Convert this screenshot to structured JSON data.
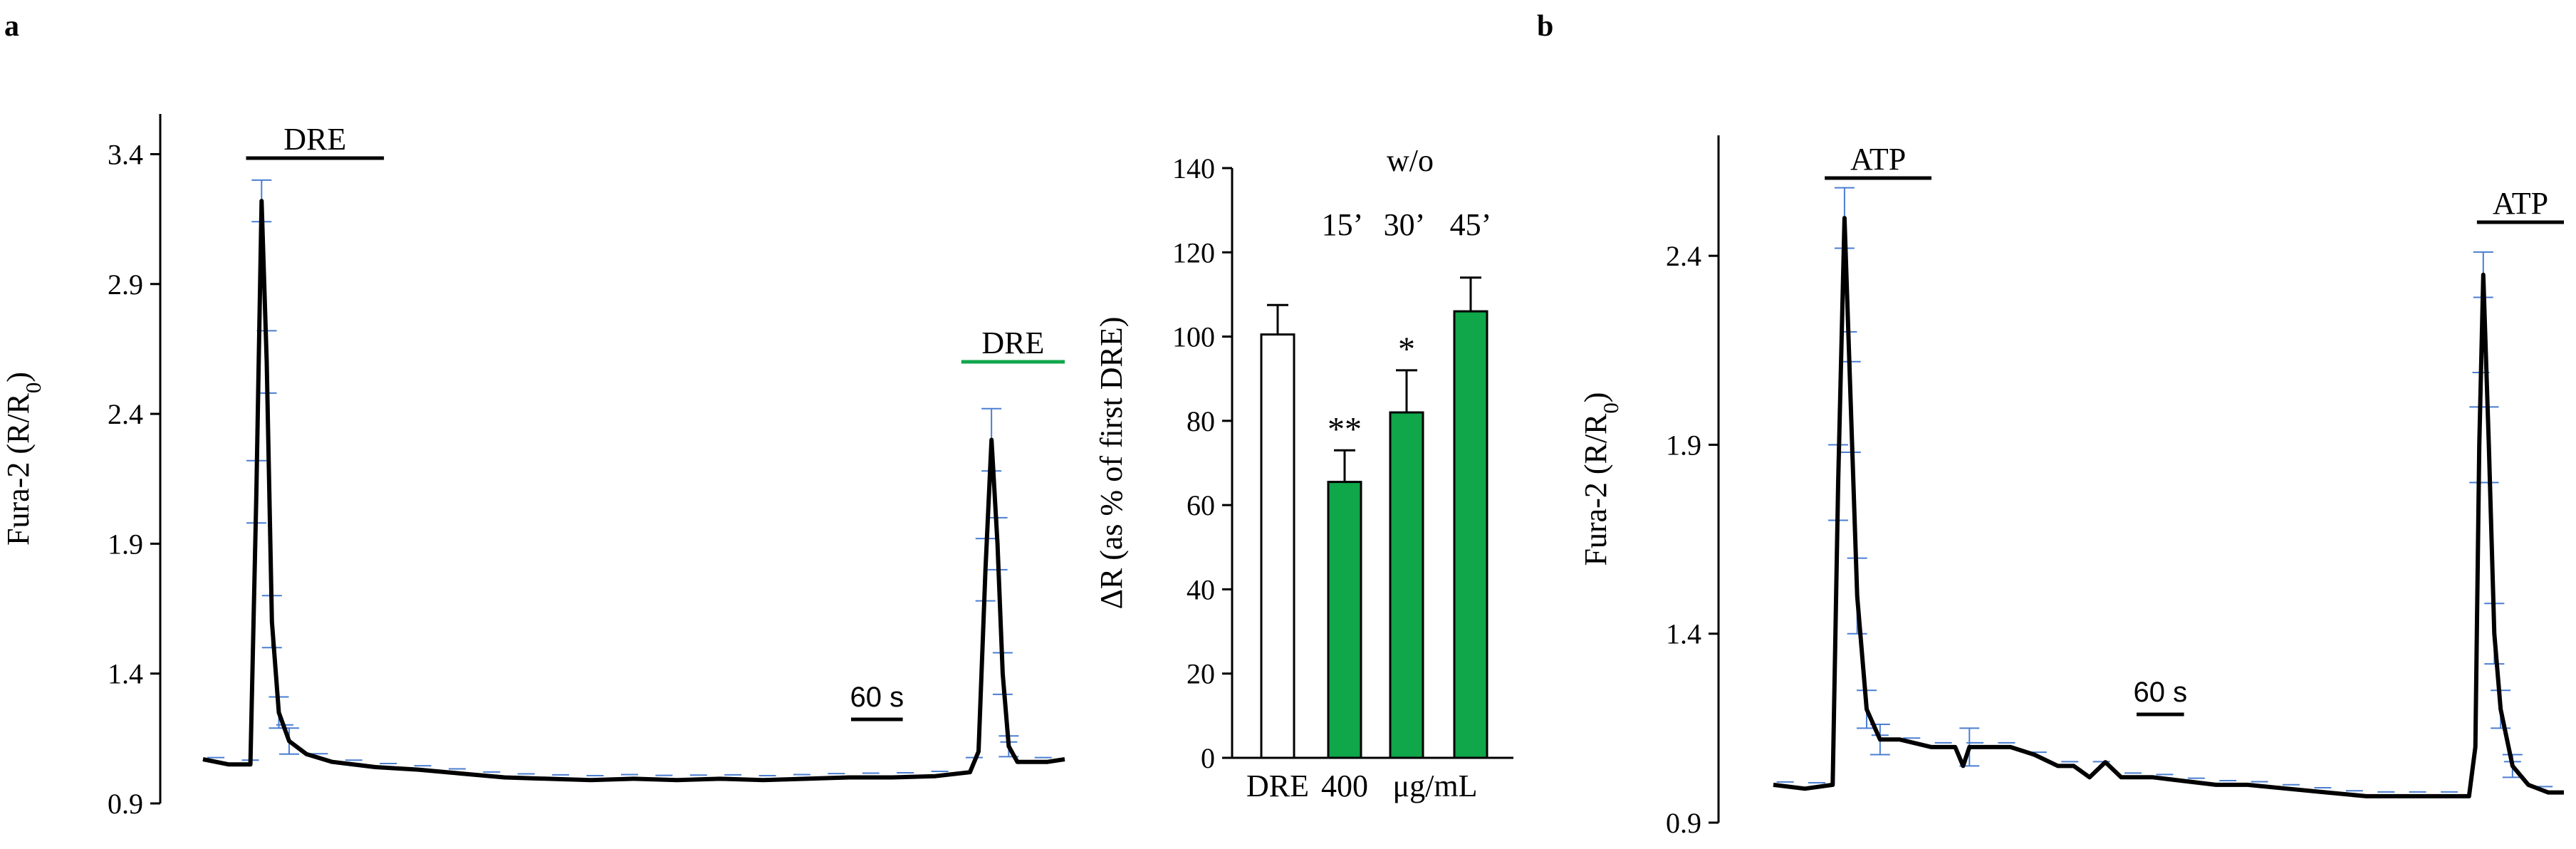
{
  "panels": {
    "a": {
      "label": "a"
    },
    "b": {
      "label": "b"
    }
  },
  "colors": {
    "trace": "#000000",
    "error_bar": "#4a7ed1",
    "green": "#10a64a",
    "axis": "#000000"
  },
  "chart_data": [
    {
      "id": "a-trace",
      "type": "line",
      "ylabel": "Fura-2 (R/R0)",
      "ylim": [
        0.9,
        3.5
      ],
      "yticks": [
        0.9,
        1.4,
        1.9,
        2.4,
        2.9,
        3.4
      ],
      "ytick_labels": [
        "0.9",
        "1.4",
        "1.9",
        "2.4",
        "2.9",
        "3.4"
      ],
      "xlim": [
        0,
        1000
      ],
      "x_units": "s",
      "scale_bar": {
        "label": "60 s",
        "seconds": 60
      },
      "applications": [
        {
          "label": "DRE",
          "start": 50,
          "end": 210,
          "color": "#000000"
        },
        {
          "label": "DRE",
          "start": 880,
          "end": 1000,
          "color": "#10a64a"
        }
      ],
      "series": [
        {
          "name": "mean",
          "points": [
            [
              0,
              1.07
            ],
            [
              30,
              1.05
            ],
            [
              55,
              1.05
            ],
            [
              62,
              2.1
            ],
            [
              68,
              3.22
            ],
            [
              74,
              2.6
            ],
            [
              80,
              1.6
            ],
            [
              88,
              1.25
            ],
            [
              100,
              1.14
            ],
            [
              120,
              1.09
            ],
            [
              150,
              1.06
            ],
            [
              200,
              1.04
            ],
            [
              250,
              1.03
            ],
            [
              300,
              1.015
            ],
            [
              350,
              1.0
            ],
            [
              400,
              0.995
            ],
            [
              450,
              0.99
            ],
            [
              500,
              0.995
            ],
            [
              550,
              0.99
            ],
            [
              600,
              0.995
            ],
            [
              650,
              0.99
            ],
            [
              700,
              0.995
            ],
            [
              750,
              1.0
            ],
            [
              800,
              1.0
            ],
            [
              850,
              1.005
            ],
            [
              890,
              1.02
            ],
            [
              900,
              1.1
            ],
            [
              908,
              1.8
            ],
            [
              915,
              2.3
            ],
            [
              922,
              1.9
            ],
            [
              928,
              1.4
            ],
            [
              935,
              1.12
            ],
            [
              945,
              1.06
            ],
            [
              960,
              1.06
            ],
            [
              980,
              1.06
            ],
            [
              1000,
              1.07
            ]
          ]
        }
      ],
      "errors": [
        [
          62,
          0.12
        ],
        [
          68,
          0.08
        ],
        [
          74,
          0.12
        ],
        [
          80,
          0.1
        ],
        [
          88,
          0.06
        ],
        [
          100,
          0.05
        ],
        [
          908,
          0.12
        ],
        [
          915,
          0.12
        ],
        [
          922,
          0.1
        ],
        [
          928,
          0.08
        ],
        [
          935,
          0.04
        ]
      ]
    },
    {
      "id": "a-bar",
      "type": "bar",
      "ylabel": "ΔR (as % of first DRE)",
      "ylim": [
        0,
        140
      ],
      "yticks": [
        0,
        20,
        40,
        60,
        80,
        100,
        120,
        140
      ],
      "ytick_labels": [
        "0",
        "20",
        "40",
        "60",
        "80",
        "100",
        "120",
        "140"
      ],
      "categories": [
        "DRE",
        "15’",
        "30’",
        "45’"
      ],
      "values": [
        100.5,
        65.5,
        82,
        106
      ],
      "errors": [
        7,
        7.5,
        10,
        8
      ],
      "fills": [
        "#ffffff",
        "#10a64a",
        "#10a64a",
        "#10a64a"
      ],
      "significance": [
        "",
        "**",
        "*",
        ""
      ],
      "group_header": "w/o",
      "time_labels": [
        "15’",
        "30’",
        "45’"
      ],
      "x_labels": [
        "DRE",
        "400",
        "μg/mL"
      ]
    },
    {
      "id": "b-trace",
      "type": "line",
      "ylabel": "Fura-2 (R/R0)",
      "ylim": [
        0.9,
        2.7
      ],
      "yticks": [
        0.9,
        1.4,
        1.9,
        2.4
      ],
      "ytick_labels": [
        "0.9",
        "1.4",
        "1.9",
        "2.4"
      ],
      "xlim": [
        0,
        1000
      ],
      "x_units": "s",
      "scale_bar": {
        "label": "60 s",
        "seconds": 60
      },
      "applications": [
        {
          "label": "ATP",
          "start": 65,
          "end": 200,
          "color": "#000000"
        },
        {
          "label": "ATP",
          "start": 890,
          "end": 1000,
          "color": "#000000"
        }
      ],
      "series": [
        {
          "name": "mean",
          "points": [
            [
              0,
              1.0
            ],
            [
              40,
              0.99
            ],
            [
              75,
              1.0
            ],
            [
              82,
              1.8
            ],
            [
              90,
              2.5
            ],
            [
              98,
              2.0
            ],
            [
              106,
              1.5
            ],
            [
              118,
              1.2
            ],
            [
              135,
              1.12
            ],
            [
              160,
              1.12
            ],
            [
              200,
              1.1
            ],
            [
              230,
              1.1
            ],
            [
              240,
              1.05
            ],
            [
              248,
              1.1
            ],
            [
              260,
              1.1
            ],
            [
              300,
              1.1
            ],
            [
              330,
              1.08
            ],
            [
              360,
              1.05
            ],
            [
              380,
              1.05
            ],
            [
              400,
              1.02
            ],
            [
              420,
              1.06
            ],
            [
              440,
              1.02
            ],
            [
              480,
              1.02
            ],
            [
              520,
              1.01
            ],
            [
              560,
              1.0
            ],
            [
              600,
              1.0
            ],
            [
              650,
              0.99
            ],
            [
              700,
              0.98
            ],
            [
              750,
              0.97
            ],
            [
              800,
              0.97
            ],
            [
              850,
              0.97
            ],
            [
              880,
              0.97
            ],
            [
              888,
              1.1
            ],
            [
              893,
              1.9
            ],
            [
              898,
              2.35
            ],
            [
              905,
              1.9
            ],
            [
              912,
              1.4
            ],
            [
              920,
              1.2
            ],
            [
              935,
              1.05
            ],
            [
              955,
              1.0
            ],
            [
              980,
              0.98
            ],
            [
              1000,
              0.98
            ]
          ]
        }
      ],
      "errors": [
        [
          82,
          0.1
        ],
        [
          90,
          0.08
        ],
        [
          98,
          0.12
        ],
        [
          106,
          0.1
        ],
        [
          118,
          0.05
        ],
        [
          135,
          0.04
        ],
        [
          248,
          0.05
        ],
        [
          893,
          0.1
        ],
        [
          898,
          0.06
        ],
        [
          905,
          0.1
        ],
        [
          912,
          0.08
        ],
        [
          920,
          0.05
        ],
        [
          935,
          0.03
        ]
      ]
    }
  ]
}
